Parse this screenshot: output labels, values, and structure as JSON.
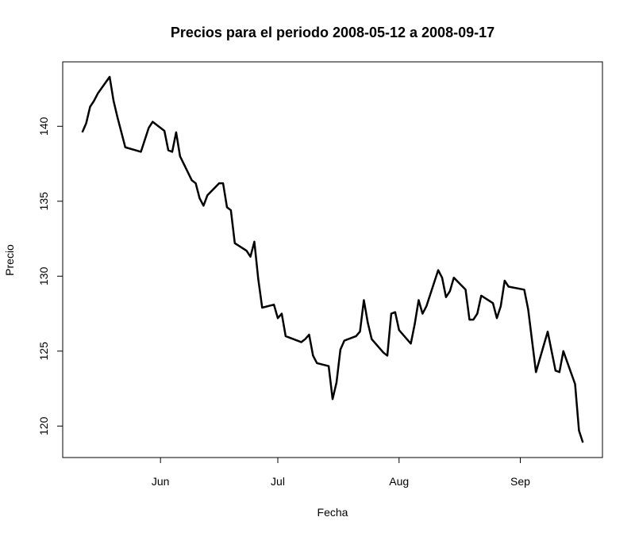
{
  "chart_data": {
    "type": "line",
    "title": "Precios para el periodo 2008-05-12 a 2008-09-17",
    "x_label": "Fecha",
    "y_label": "Precio",
    "x": [
      "2008-05-12",
      "2008-05-13",
      "2008-05-14",
      "2008-05-15",
      "2008-05-16",
      "2008-05-19",
      "2008-05-20",
      "2008-05-21",
      "2008-05-23",
      "2008-05-27",
      "2008-05-28",
      "2008-05-29",
      "2008-05-30",
      "2008-06-02",
      "2008-06-03",
      "2008-06-04",
      "2008-06-05",
      "2008-06-06",
      "2008-06-09",
      "2008-06-10",
      "2008-06-11",
      "2008-06-12",
      "2008-06-13",
      "2008-06-16",
      "2008-06-17",
      "2008-06-18",
      "2008-06-19",
      "2008-06-20",
      "2008-06-23",
      "2008-06-24",
      "2008-06-25",
      "2008-06-26",
      "2008-06-27",
      "2008-06-30",
      "2008-07-01",
      "2008-07-02",
      "2008-07-03",
      "2008-07-07",
      "2008-07-08",
      "2008-07-09",
      "2008-07-10",
      "2008-07-11",
      "2008-07-14",
      "2008-07-15",
      "2008-07-16",
      "2008-07-17",
      "2008-07-18",
      "2008-07-21",
      "2008-07-22",
      "2008-07-23",
      "2008-07-24",
      "2008-07-25",
      "2008-07-28",
      "2008-07-29",
      "2008-07-30",
      "2008-07-31",
      "2008-08-01",
      "2008-08-04",
      "2008-08-05",
      "2008-08-06",
      "2008-08-07",
      "2008-08-08",
      "2008-08-11",
      "2008-08-12",
      "2008-08-13",
      "2008-08-14",
      "2008-08-15",
      "2008-08-18",
      "2008-08-19",
      "2008-08-20",
      "2008-08-21",
      "2008-08-22",
      "2008-08-25",
      "2008-08-26",
      "2008-08-27",
      "2008-08-28",
      "2008-08-29",
      "2008-09-02",
      "2008-09-03",
      "2008-09-05",
      "2008-09-08",
      "2008-09-10",
      "2008-09-11",
      "2008-09-12",
      "2008-09-15",
      "2008-09-16",
      "2008-09-17"
    ],
    "values": [
      139.6,
      140.2,
      141.3,
      141.7,
      142.2,
      143.3,
      141.7,
      140.6,
      138.6,
      138.3,
      139.1,
      139.9,
      140.3,
      139.7,
      138.4,
      138.3,
      139.6,
      138.0,
      136.4,
      136.2,
      135.2,
      134.7,
      135.4,
      136.2,
      136.2,
      134.6,
      134.4,
      132.2,
      131.7,
      131.3,
      132.3,
      129.8,
      127.9,
      128.1,
      127.2,
      127.5,
      126.0,
      125.6,
      125.8,
      126.1,
      124.7,
      124.2,
      124.0,
      121.8,
      122.9,
      125.1,
      125.7,
      126.0,
      126.3,
      128.4,
      126.9,
      125.8,
      124.9,
      124.7,
      127.5,
      127.6,
      126.4,
      125.5,
      126.8,
      128.4,
      127.5,
      128.0,
      130.4,
      129.9,
      128.6,
      129.0,
      129.9,
      129.1,
      127.1,
      127.1,
      127.5,
      128.7,
      128.2,
      127.2,
      128.0,
      129.7,
      129.3,
      129.1,
      127.8,
      123.6,
      126.3,
      123.7,
      123.6,
      125.0,
      122.8,
      119.7,
      118.9
    ],
    "color": "#000000",
    "xlim": [
      "2008-05-07",
      "2008-09-22"
    ],
    "xticks": [
      {
        "value": "2008-06-01",
        "label": "Jun"
      },
      {
        "value": "2008-07-01",
        "label": "Jul"
      },
      {
        "value": "2008-08-01",
        "label": "Aug"
      },
      {
        "value": "2008-09-01",
        "label": "Sep"
      }
    ],
    "ylim": [
      117.9,
      144.3
    ],
    "yticks": [
      120,
      125,
      130,
      135,
      140
    ],
    "grid": false
  }
}
